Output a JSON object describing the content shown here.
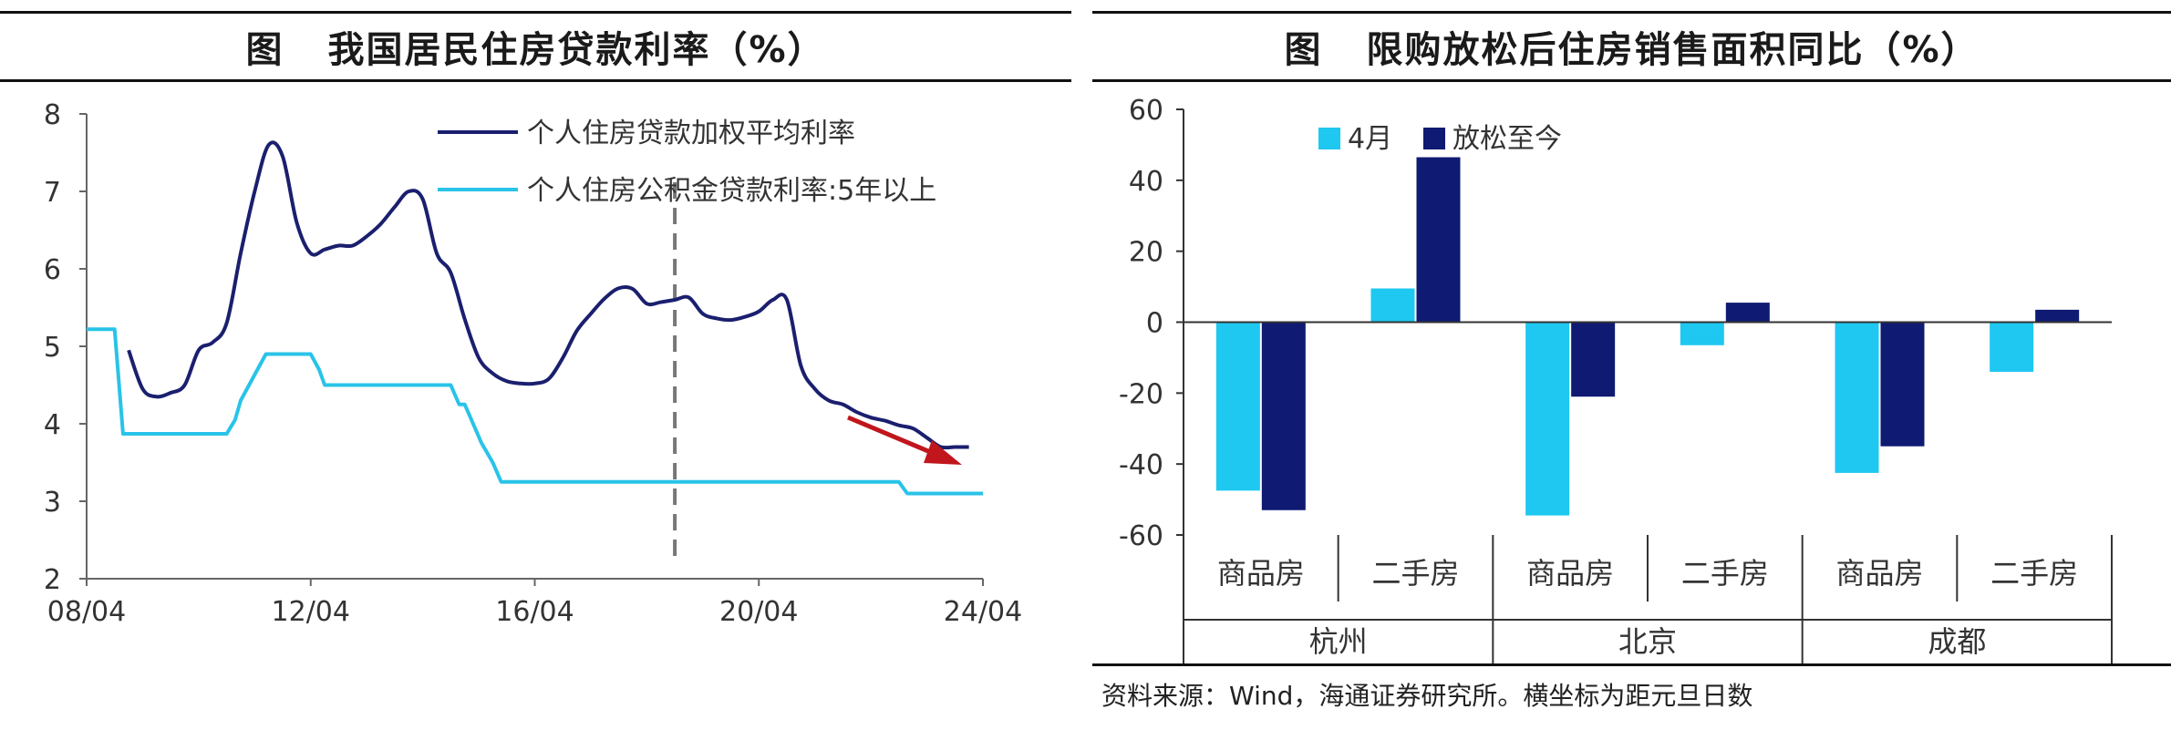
{
  "left": {
    "title_prefix": "图",
    "title": "我国居民住房贷款利率（%）",
    "chart_data": {
      "type": "line",
      "title": "我国居民住房贷款利率（%）",
      "x_tick_labels": [
        "08/04",
        "12/04",
        "16/04",
        "20/04",
        "24/04"
      ],
      "x_range": [
        2008.25,
        2024.25
      ],
      "ylim": [
        2,
        8
      ],
      "y_ticks": [
        2,
        3,
        4,
        5,
        6,
        7,
        8
      ],
      "legend_position": "top-right",
      "series": [
        {
          "name": "个人住房贷款加权平均利率",
          "color": "#1a1f6e",
          "x": [
            2009.0,
            2009.25,
            2009.5,
            2009.75,
            2010.0,
            2010.25,
            2010.5,
            2010.75,
            2011.0,
            2011.25,
            2011.5,
            2011.75,
            2012.0,
            2012.25,
            2012.5,
            2012.75,
            2013.0,
            2013.25,
            2013.5,
            2013.75,
            2014.0,
            2014.25,
            2014.5,
            2014.75,
            2015.0,
            2015.25,
            2015.5,
            2015.75,
            2016.0,
            2016.25,
            2016.5,
            2016.75,
            2017.0,
            2017.25,
            2017.5,
            2017.75,
            2018.0,
            2018.25,
            2018.5,
            2018.75,
            2019.0,
            2019.25,
            2019.5,
            2019.75,
            2020.0,
            2020.25,
            2020.5,
            2020.75,
            2021.0,
            2021.25,
            2021.5,
            2021.75,
            2022.0,
            2022.25,
            2022.5,
            2022.75,
            2023.0,
            2023.25,
            2023.5,
            2023.75,
            2024.0
          ],
          "values": [
            4.95,
            4.45,
            4.35,
            4.4,
            4.5,
            4.95,
            5.05,
            5.3,
            6.2,
            7.0,
            7.6,
            7.45,
            6.6,
            6.2,
            6.25,
            6.3,
            6.3,
            6.42,
            6.58,
            6.8,
            7.0,
            6.9,
            6.2,
            5.95,
            5.35,
            4.85,
            4.65,
            4.55,
            4.52,
            4.52,
            4.58,
            4.85,
            5.2,
            5.42,
            5.62,
            5.75,
            5.74,
            5.55,
            5.57,
            5.6,
            5.63,
            5.42,
            5.36,
            5.34,
            5.38,
            5.45,
            5.6,
            5.6,
            4.75,
            4.45,
            4.3,
            4.25,
            4.15,
            4.08,
            4.04,
            3.98,
            3.94,
            3.82,
            3.7,
            3.7,
            3.7
          ]
        },
        {
          "name": "个人住房公积金贷款利率:5年以上",
          "color": "#29c3e8",
          "x": [
            2008.25,
            2008.6,
            2008.75,
            2008.9,
            2009.0,
            2010.75,
            2010.9,
            2011.0,
            2011.15,
            2011.3,
            2011.45,
            2011.6,
            2012.25,
            2012.4,
            2012.5,
            2014.75,
            2014.9,
            2015.0,
            2015.15,
            2015.3,
            2015.5,
            2015.65,
            2022.75,
            2022.9,
            2024.25
          ],
          "values": [
            5.22,
            5.22,
            5.22,
            3.87,
            3.87,
            3.87,
            4.05,
            4.3,
            4.5,
            4.7,
            4.9,
            4.9,
            4.9,
            4.7,
            4.5,
            4.5,
            4.25,
            4.25,
            4.0,
            3.75,
            3.5,
            3.25,
            3.25,
            3.1,
            3.1
          ]
        }
      ],
      "annotations": [
        "dashed vertical line near 2018-2019",
        "red downward arrow near end of series"
      ]
    }
  },
  "right": {
    "title_prefix": "图",
    "title": "限购放松后住房销售面积同比（%）",
    "chart_data": {
      "type": "bar",
      "title": "限购放松后住房销售面积同比（%）",
      "ylim": [
        -60,
        60
      ],
      "y_ticks": [
        60,
        40,
        20,
        0,
        -20,
        -40,
        -60
      ],
      "legend_position": "top-left",
      "groups": [
        "杭州",
        "北京",
        "成都"
      ],
      "categories": [
        "商品房",
        "二手房",
        "商品房",
        "二手房",
        "商品房",
        "二手房"
      ],
      "series": [
        {
          "name": "4月",
          "color": "#1ec8f0",
          "values": [
            -47.5,
            9.5,
            -54.5,
            -6.5,
            -42.5,
            -14
          ]
        },
        {
          "name": "放松至今",
          "color": "#0f1a72",
          "values": [
            -53,
            46.5,
            -21,
            5.5,
            -35,
            3.5
          ]
        }
      ]
    },
    "source_note": "资料来源：Wind，海通证券研究所。横坐标为距元旦日数"
  }
}
